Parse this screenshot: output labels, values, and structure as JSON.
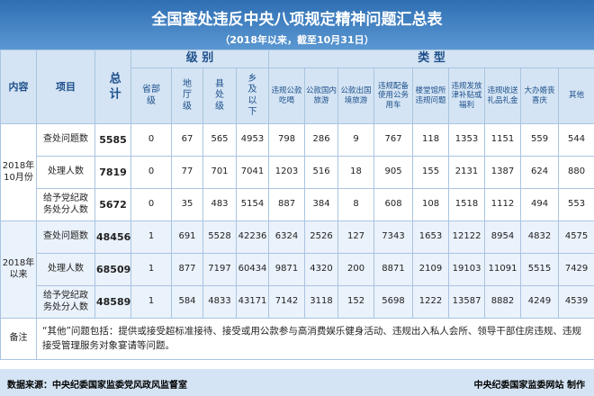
{
  "header": {
    "title": "全国查处违反中央八项规定精神问题汇总表",
    "subtitle": "（2018年以来，截至10月31日）"
  },
  "table": {
    "col_headers": {
      "content": "内容",
      "item": "项目",
      "total": "总计",
      "level_group": "级 别",
      "type_group": "类 型",
      "levels": [
        "省部级",
        "地厅级",
        "县处级",
        "乡及以下"
      ],
      "types": [
        "违规公款吃喝",
        "公款国内旅游",
        "公款出国境旅游",
        "违规配备使用公务用车",
        "楼堂馆所违规问题",
        "违规发放津补贴或福利",
        "违规收送礼品礼金",
        "大办婚丧喜庆",
        "其他"
      ]
    },
    "groups": [
      {
        "period": "2018年10月份",
        "rows": [
          {
            "item": "查处问题数",
            "total": 5585,
            "levels": [
              0,
              67,
              565,
              4953
            ],
            "types": [
              798,
              286,
              9,
              767,
              118,
              1353,
              1151,
              559,
              544
            ]
          },
          {
            "item": "处理人数",
            "total": 7819,
            "levels": [
              0,
              77,
              701,
              7041
            ],
            "types": [
              1203,
              516,
              18,
              905,
              155,
              2131,
              1387,
              624,
              880
            ]
          },
          {
            "item": "给予党纪政务处分人数",
            "total": 5672,
            "levels": [
              0,
              35,
              483,
              5154
            ],
            "types": [
              887,
              384,
              8,
              608,
              108,
              1518,
              1112,
              494,
              553
            ]
          }
        ]
      },
      {
        "period": "2018年以来",
        "rows": [
          {
            "item": "查处问题数",
            "total": 48456,
            "levels": [
              1,
              691,
              5528,
              42236
            ],
            "types": [
              6324,
              2526,
              127,
              7343,
              1653,
              12122,
              8954,
              4832,
              4575
            ]
          },
          {
            "item": "处理人数",
            "total": 68509,
            "levels": [
              1,
              877,
              7197,
              60434
            ],
            "types": [
              9871,
              4320,
              200,
              8871,
              2109,
              19103,
              11091,
              5515,
              7429
            ]
          },
          {
            "item": "给予党纪政务处分人数",
            "total": 48589,
            "levels": [
              1,
              584,
              4833,
              43171
            ],
            "types": [
              7142,
              3118,
              152,
              5698,
              1222,
              13587,
              8882,
              4249,
              4539
            ]
          }
        ]
      }
    ]
  },
  "note": {
    "label": "备注",
    "text": "“其他”问题包括：提供或接受超标准接待、接受或用公款参与高消费娱乐健身活动、违规出入私人会所、领导干部住房违规、违规接受管理服务对象宴请等问题。"
  },
  "footer": {
    "source": "数据来源：中央纪委国家监委党风政风监督室",
    "credit": "中央纪委国家监委网站 制作"
  }
}
